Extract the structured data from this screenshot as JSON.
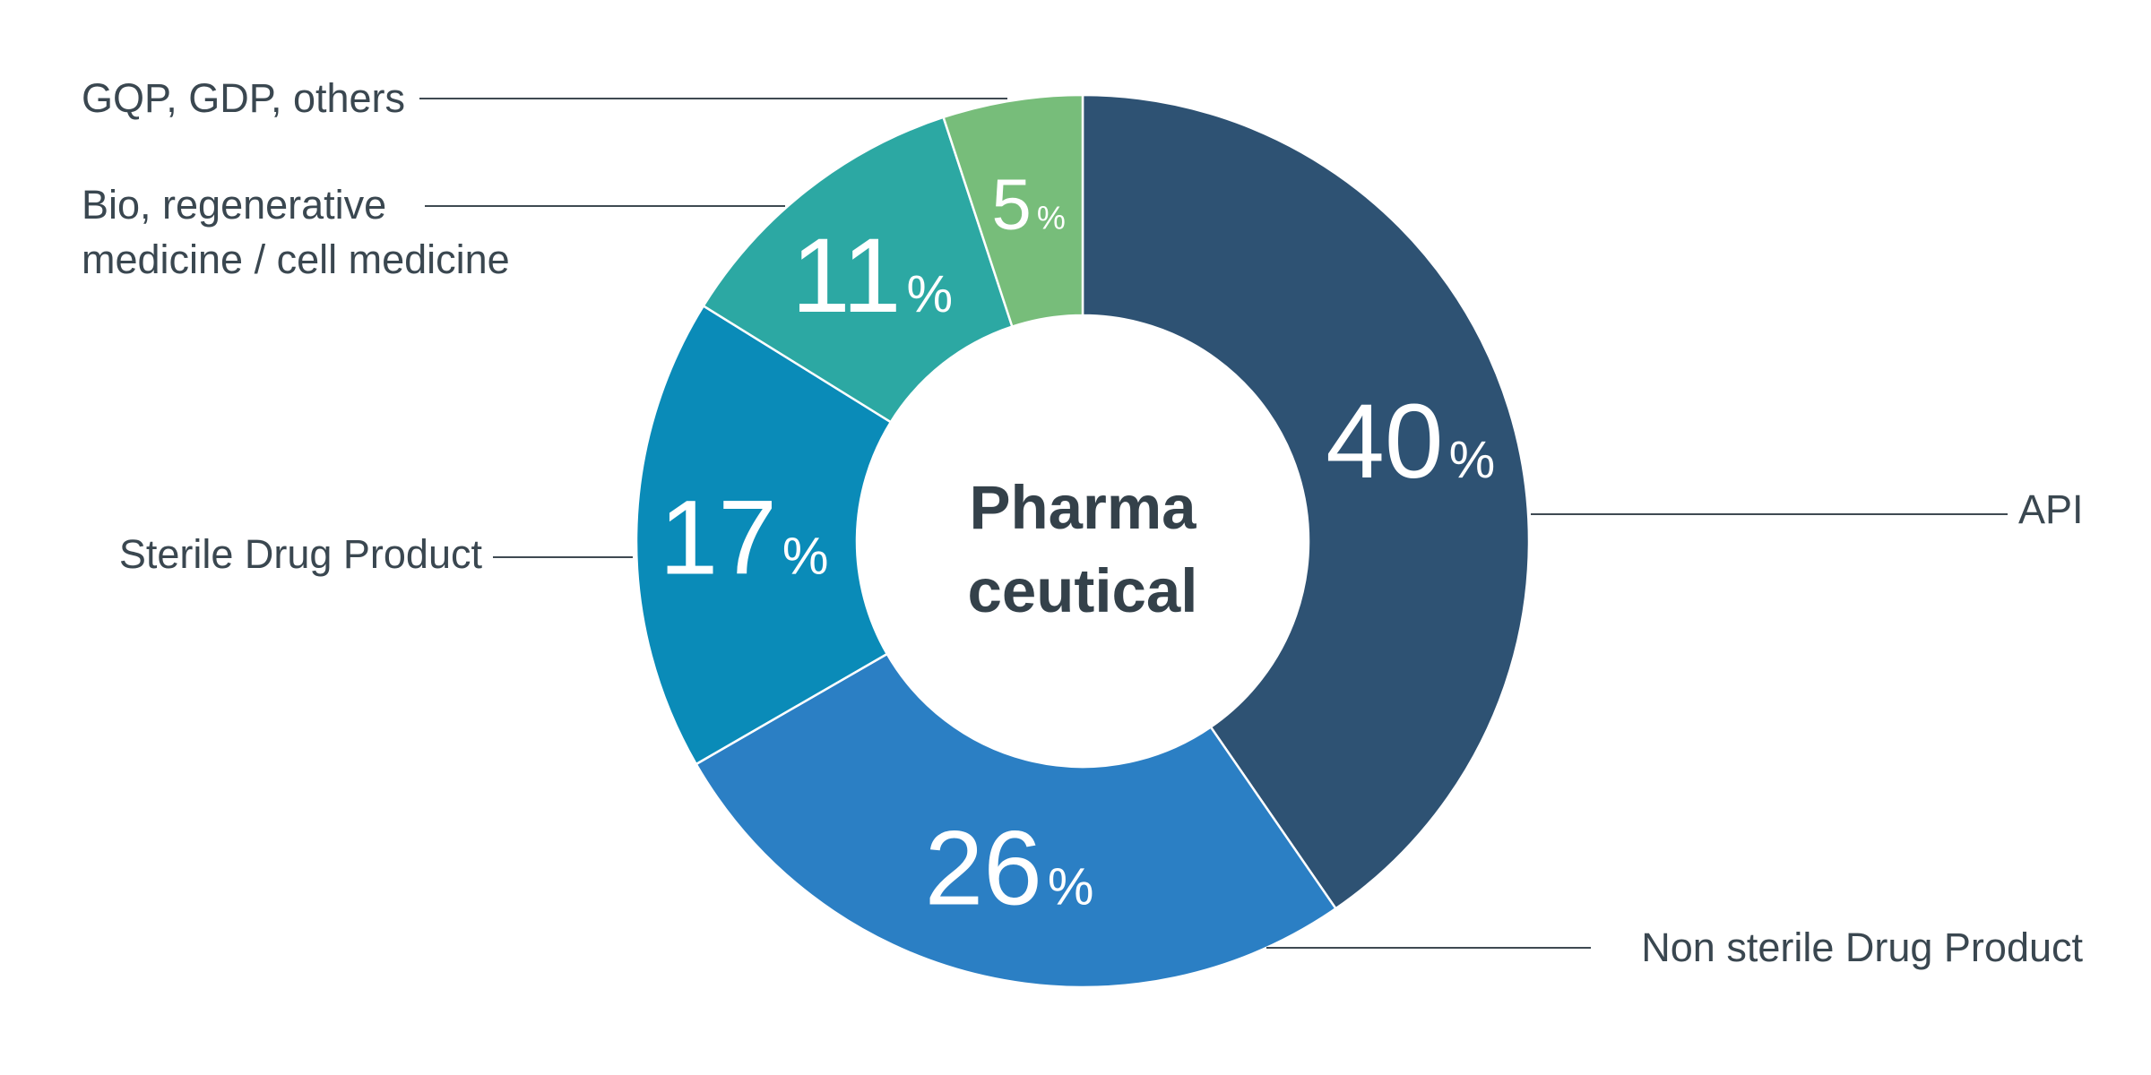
{
  "chart_data": {
    "type": "pie",
    "donut": true,
    "center_label": [
      "Pharma",
      "ceutical"
    ],
    "unit": "%",
    "slices": [
      {
        "label": "API",
        "value": 40,
        "color": "#2e5273"
      },
      {
        "label": "Non sterile Drug Product",
        "value": 26,
        "color": "#2b7fc4"
      },
      {
        "label": "Sterile Drug Product",
        "value": 17,
        "color": "#0a8bb8"
      },
      {
        "label": "Bio, regenerative\nmedicine / cell medicine",
        "value": 11,
        "color": "#2ca8a3"
      },
      {
        "label": "GQP, GDP, others",
        "value": 5,
        "color": "#77bd7a"
      }
    ]
  }
}
